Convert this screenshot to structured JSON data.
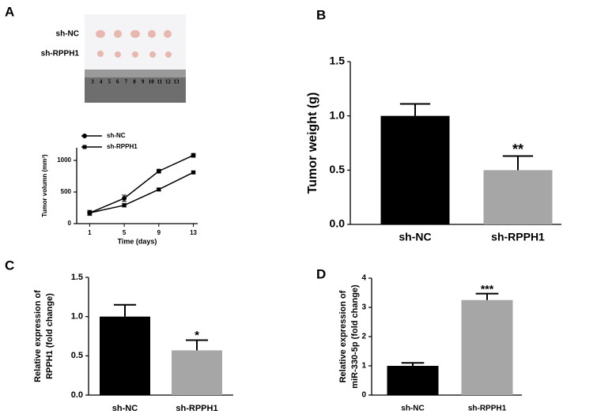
{
  "panel_labels": [
    "A",
    "B",
    "C",
    "D"
  ],
  "photo": {
    "labels": [
      "sh-NC",
      "sh-RPPH1"
    ],
    "ruler": [
      "3",
      "4",
      "5",
      "6",
      "7",
      "8",
      "9",
      "10",
      "11",
      "12",
      "13"
    ]
  },
  "chart_data": [
    {
      "type": "line",
      "x_label": "Time (days)",
      "y_label": "Tumor volumn (mm³)",
      "x": [
        1,
        5,
        9,
        13
      ],
      "xlim": [
        -0.5,
        13.5
      ],
      "xticks": [
        1,
        5,
        9,
        13
      ],
      "ylim": [
        0,
        1200
      ],
      "yticks": [
        0,
        500,
        1000
      ],
      "legend": "upper left",
      "series": [
        {
          "name": "sh-NC",
          "color": "#000000",
          "values": [
            170,
            400,
            830,
            1080
          ],
          "errors": [
            40,
            50,
            30,
            30
          ]
        },
        {
          "name": "sh-RPPH1",
          "color": "#000000",
          "values": [
            170,
            290,
            540,
            810
          ],
          "errors": [
            20,
            25,
            20,
            20
          ]
        }
      ]
    },
    {
      "type": "bar",
      "y_label": [
        "Tumor weight (g)"
      ],
      "categories": [
        "sh-NC",
        "sh-RPPH1"
      ],
      "values": [
        1.0,
        0.5
      ],
      "errors": [
        0.11,
        0.13
      ],
      "colors": [
        "#000000",
        "#a6a6a6"
      ],
      "annotation": "**",
      "ylim": [
        0,
        1.5
      ],
      "yticks": [
        {
          "value": 0,
          "label": "0.0"
        },
        {
          "value": 0.5,
          "label": "0.5"
        },
        {
          "value": 1,
          "label": "1.0"
        },
        {
          "value": 1.5,
          "label": "1.5"
        }
      ]
    },
    {
      "type": "bar",
      "y_label": [
        "Relative  expression of",
        "RPPH1 (fold change)"
      ],
      "categories": [
        "sh-NC",
        "sh-RPPH1"
      ],
      "values": [
        1.0,
        0.57
      ],
      "errors": [
        0.15,
        0.13
      ],
      "colors": [
        "#000000",
        "#a6a6a6"
      ],
      "annotation": "*",
      "ylim": [
        0,
        1.5
      ],
      "yticks": [
        {
          "value": 0,
          "label": "0.0"
        },
        {
          "value": 0.5,
          "label": "0.5"
        },
        {
          "value": 1,
          "label": "1.0"
        },
        {
          "value": 1.5,
          "label": "1.5"
        }
      ]
    },
    {
      "type": "bar",
      "y_label": [
        "Relative expression of",
        "miR-330-5p (fold change)"
      ],
      "categories": [
        "sh-NC",
        "sh-RPPH1"
      ],
      "values": [
        1.0,
        3.25
      ],
      "errors": [
        0.1,
        0.22
      ],
      "colors": [
        "#000000",
        "#a6a6a6"
      ],
      "annotation": "***",
      "ylim": [
        0,
        4
      ],
      "yticks": [
        0,
        1,
        2,
        3,
        4
      ]
    }
  ]
}
